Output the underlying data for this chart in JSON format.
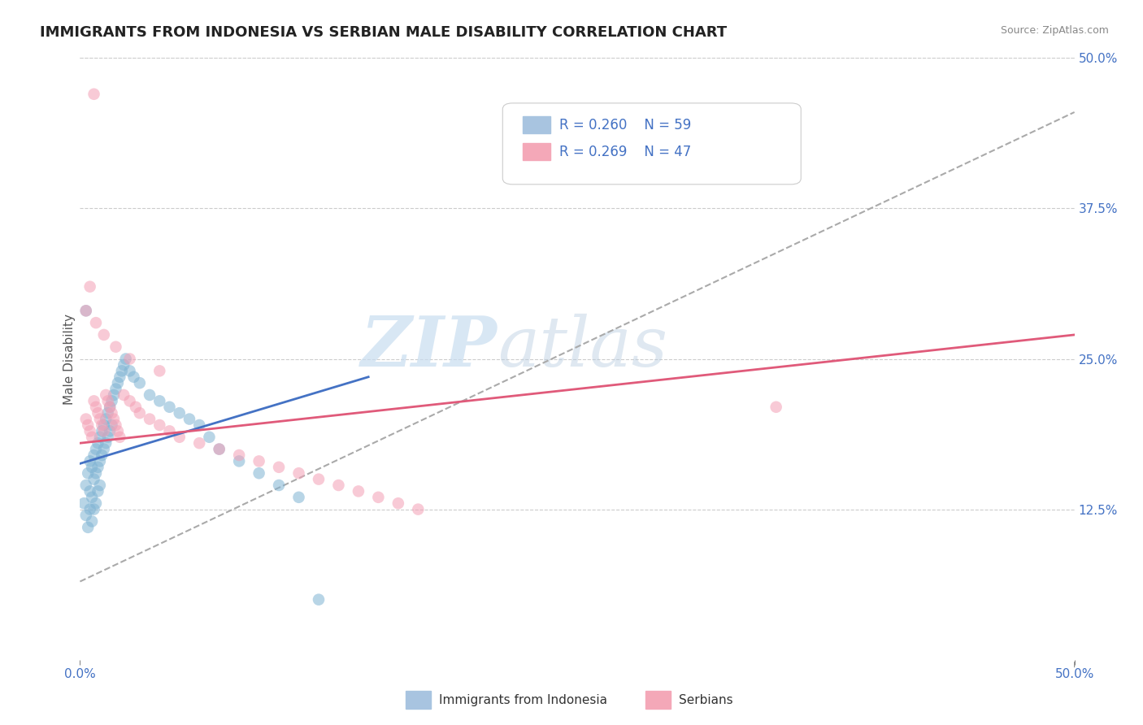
{
  "title": "IMMIGRANTS FROM INDONESIA VS SERBIAN MALE DISABILITY CORRELATION CHART",
  "source": "Source: ZipAtlas.com",
  "ylabel": "Male Disability",
  "xlim": [
    0.0,
    0.5
  ],
  "ylim": [
    0.0,
    0.5
  ],
  "ytick_labels": [
    "12.5%",
    "25.0%",
    "37.5%",
    "50.0%"
  ],
  "ytick_values": [
    0.125,
    0.25,
    0.375,
    0.5
  ],
  "legend_entries": [
    {
      "label": "Immigrants from Indonesia",
      "color": "#a8c4e0",
      "R": 0.26,
      "N": 59
    },
    {
      "label": "Serbians",
      "color": "#f4a8b8",
      "R": 0.269,
      "N": 47
    }
  ],
  "blue_scatter_x": [
    0.002,
    0.003,
    0.003,
    0.004,
    0.004,
    0.005,
    0.005,
    0.005,
    0.006,
    0.006,
    0.006,
    0.007,
    0.007,
    0.007,
    0.008,
    0.008,
    0.008,
    0.009,
    0.009,
    0.009,
    0.01,
    0.01,
    0.01,
    0.011,
    0.011,
    0.012,
    0.012,
    0.013,
    0.013,
    0.014,
    0.014,
    0.015,
    0.015,
    0.016,
    0.016,
    0.017,
    0.018,
    0.019,
    0.02,
    0.021,
    0.022,
    0.023,
    0.025,
    0.027,
    0.03,
    0.035,
    0.04,
    0.045,
    0.05,
    0.055,
    0.06,
    0.065,
    0.07,
    0.08,
    0.09,
    0.1,
    0.11,
    0.12,
    0.003
  ],
  "blue_scatter_y": [
    0.13,
    0.145,
    0.12,
    0.155,
    0.11,
    0.165,
    0.14,
    0.125,
    0.16,
    0.135,
    0.115,
    0.17,
    0.15,
    0.125,
    0.175,
    0.155,
    0.13,
    0.18,
    0.16,
    0.14,
    0.185,
    0.165,
    0.145,
    0.19,
    0.17,
    0.195,
    0.175,
    0.2,
    0.18,
    0.205,
    0.185,
    0.21,
    0.19,
    0.215,
    0.195,
    0.22,
    0.225,
    0.23,
    0.235,
    0.24,
    0.245,
    0.25,
    0.24,
    0.235,
    0.23,
    0.22,
    0.215,
    0.21,
    0.205,
    0.2,
    0.195,
    0.185,
    0.175,
    0.165,
    0.155,
    0.145,
    0.135,
    0.05,
    0.29
  ],
  "pink_scatter_x": [
    0.003,
    0.004,
    0.005,
    0.006,
    0.007,
    0.008,
    0.009,
    0.01,
    0.011,
    0.012,
    0.013,
    0.014,
    0.015,
    0.016,
    0.017,
    0.018,
    0.019,
    0.02,
    0.022,
    0.025,
    0.028,
    0.03,
    0.035,
    0.04,
    0.045,
    0.05,
    0.06,
    0.07,
    0.08,
    0.09,
    0.1,
    0.11,
    0.12,
    0.13,
    0.14,
    0.15,
    0.16,
    0.17,
    0.003,
    0.005,
    0.008,
    0.012,
    0.018,
    0.025,
    0.04,
    0.35,
    0.007
  ],
  "pink_scatter_y": [
    0.2,
    0.195,
    0.19,
    0.185,
    0.215,
    0.21,
    0.205,
    0.2,
    0.195,
    0.19,
    0.22,
    0.215,
    0.21,
    0.205,
    0.2,
    0.195,
    0.19,
    0.185,
    0.22,
    0.215,
    0.21,
    0.205,
    0.2,
    0.195,
    0.19,
    0.185,
    0.18,
    0.175,
    0.17,
    0.165,
    0.16,
    0.155,
    0.15,
    0.145,
    0.14,
    0.135,
    0.13,
    0.125,
    0.29,
    0.31,
    0.28,
    0.27,
    0.26,
    0.25,
    0.24,
    0.21,
    0.47
  ],
  "blue_line_x0": 0.0,
  "blue_line_x1": 0.145,
  "blue_line_y0": 0.163,
  "blue_line_y1": 0.235,
  "pink_line_x0": 0.0,
  "pink_line_x1": 0.5,
  "pink_line_y0": 0.18,
  "pink_line_y1": 0.27,
  "dashed_line_x0": 0.0,
  "dashed_line_x1": 0.5,
  "dashed_line_y0": 0.065,
  "dashed_line_y1": 0.455,
  "blue_line_color": "#4472c4",
  "pink_line_color": "#e05a7a",
  "dashed_line_color": "#aaaaaa",
  "scatter_blue_color": "#7fb3d3",
  "scatter_pink_color": "#f4a0b5",
  "background_color": "#ffffff",
  "grid_color": "#cccccc",
  "watermark_zip": "ZIP",
  "watermark_atlas": "atlas",
  "title_fontsize": 13,
  "label_fontsize": 11
}
